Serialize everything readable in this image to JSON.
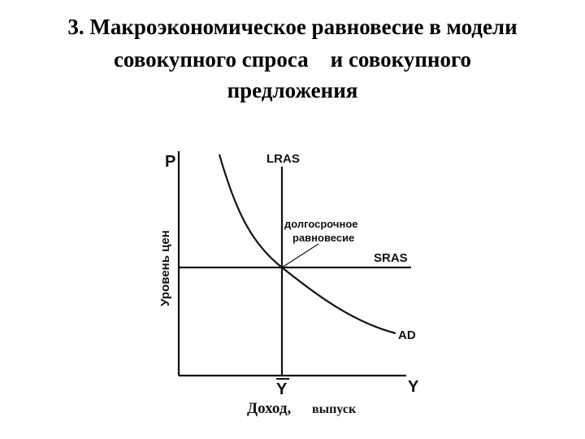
{
  "title_lines": [
    "3. Макроэкономическое равновесие в модели",
    "совокупного спроса    и совокупного",
    "предложения"
  ],
  "diagram": {
    "p_axis": "P",
    "y_axis": "Y",
    "lras": "LRAS",
    "sras": "SRAS",
    "ad": "AD",
    "equilibrium_lines": [
      "долгосрочное",
      "равновесие"
    ],
    "y_bar": "Y",
    "price_level": "Уровень цен",
    "income": "Доход,",
    "output": "выпуск"
  }
}
